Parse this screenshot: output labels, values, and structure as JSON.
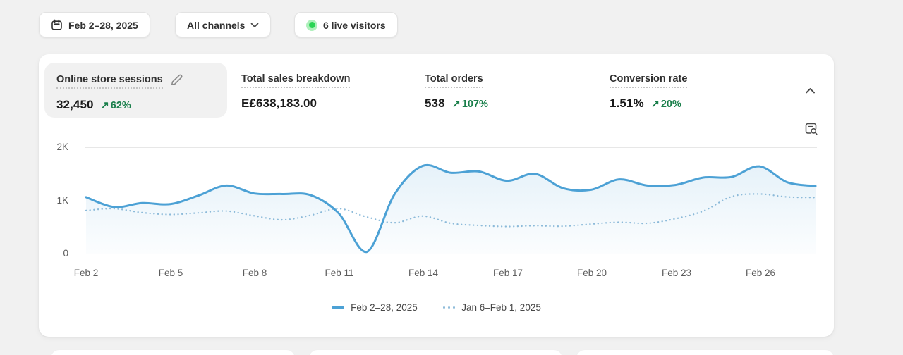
{
  "toolbar": {
    "date_range": "Feb 2–28, 2025",
    "channel_filter": "All channels",
    "live_visitors": "6 live visitors"
  },
  "icons": {
    "trend_up_glyph": "↗"
  },
  "metrics": [
    {
      "label": "Online store sessions",
      "value": "32,450",
      "delta": "62%",
      "selected": true
    },
    {
      "label": "Total sales breakdown",
      "value": "E£638,183.00",
      "delta": null
    },
    {
      "label": "Total orders",
      "value": "538",
      "delta": "107%"
    },
    {
      "label": "Conversion rate",
      "value": "1.51%",
      "delta": "20%"
    }
  ],
  "colors": {
    "background": "#f1f1f1",
    "card": "#ffffff",
    "accent_green": "#1a7f4b",
    "live_dot": "#29d454",
    "live_dot_halo": "#aef0bb",
    "grid": "#e7e7e7"
  },
  "chart_data": {
    "type": "line",
    "title": "Online store sessions",
    "x": [
      "Feb 2",
      "Feb 3",
      "Feb 4",
      "Feb 5",
      "Feb 6",
      "Feb 7",
      "Feb 8",
      "Feb 9",
      "Feb 10",
      "Feb 11",
      "Feb 12",
      "Feb 13",
      "Feb 14",
      "Feb 15",
      "Feb 16",
      "Feb 17",
      "Feb 18",
      "Feb 19",
      "Feb 20",
      "Feb 21",
      "Feb 22",
      "Feb 23",
      "Feb 24",
      "Feb 25",
      "Feb 26",
      "Feb 27",
      "Feb 28"
    ],
    "series": [
      {
        "name": "Feb 2–28, 2025",
        "style": "solid",
        "color": "#4ca1d5",
        "fill_from": "rgba(76,161,213,0.14)",
        "fill_to": "rgba(76,161,213,0.02)",
        "values": [
          1060,
          875,
          950,
          930,
          1090,
          1280,
          1130,
          1120,
          1100,
          760,
          30,
          1120,
          1650,
          1520,
          1545,
          1370,
          1500,
          1230,
          1200,
          1395,
          1280,
          1290,
          1430,
          1440,
          1640,
          1340,
          1270
        ]
      },
      {
        "name": "Jan 6–Feb 1, 2025",
        "style": "dotted",
        "color": "#8cbad9",
        "values": [
          810,
          845,
          770,
          735,
          765,
          800,
          710,
          635,
          720,
          845,
          690,
          580,
          705,
          570,
          530,
          510,
          525,
          515,
          555,
          590,
          570,
          655,
          800,
          1070,
          1120,
          1065,
          1055
        ]
      }
    ],
    "x_tick_labels": [
      "Feb 2",
      "Feb 5",
      "Feb 8",
      "Feb 11",
      "Feb 14",
      "Feb 17",
      "Feb 20",
      "Feb 23",
      "Feb 26"
    ],
    "y_ticks": [
      "2K",
      "1K",
      "0"
    ],
    "ylim": [
      0,
      2000
    ],
    "grid": "horizontal",
    "legend_position": "bottom"
  }
}
